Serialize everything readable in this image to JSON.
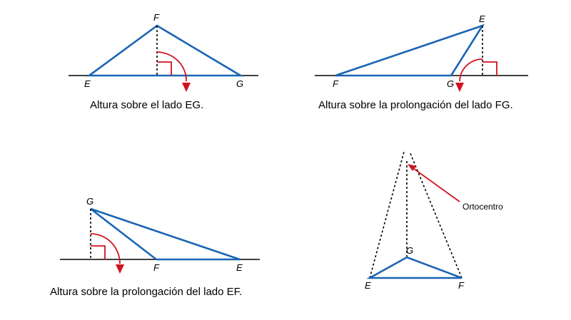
{
  "colors": {
    "triangle": "#1a64b4",
    "marker": "#d0131f",
    "line": "#000000"
  },
  "panels": [
    {
      "id": "panel-1",
      "caption": "Altura sobre el lado EG.",
      "vertices": {
        "E": "E",
        "F": "F",
        "G": "G"
      }
    },
    {
      "id": "panel-2",
      "caption": "Altura sobre la prolongación del lado FG.",
      "vertices": {
        "E": "E",
        "F": "F",
        "G": "G"
      }
    },
    {
      "id": "panel-3",
      "caption": "Altura sobre la prolongación del lado EF.",
      "vertices": {
        "E": "E",
        "F": "F",
        "G": "G"
      }
    },
    {
      "id": "panel-4",
      "callout": "Ortocentro",
      "vertices": {
        "E": "E",
        "F": "F",
        "G": "G"
      }
    }
  ]
}
